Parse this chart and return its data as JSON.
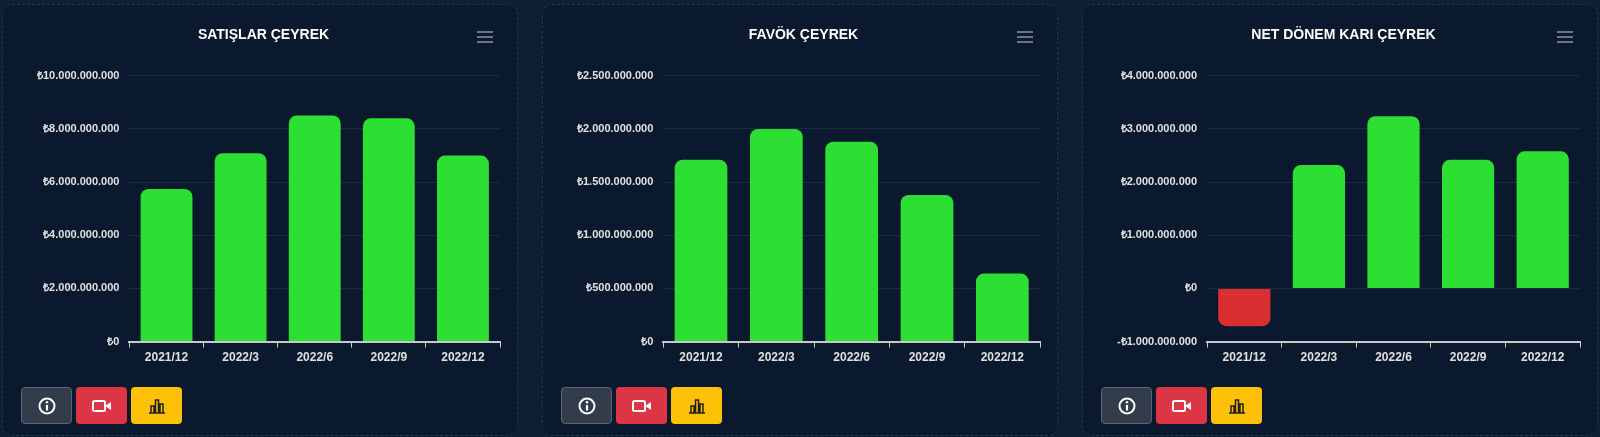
{
  "chart_data": [
    {
      "type": "bar",
      "title": "SATIŞLAR ÇEYREK",
      "categories": [
        "2021/12",
        "2022/3",
        "2022/6",
        "2022/9",
        "2022/12"
      ],
      "values": [
        5740000000,
        7090000000,
        8510000000,
        8400000000,
        7000000000
      ],
      "color": "#2ddf32",
      "ylim": [
        0,
        10000000000
      ],
      "yticks": [
        {
          "value": 0,
          "label": "₺0"
        },
        {
          "value": 2000000000,
          "label": "₺2.000.000.000"
        },
        {
          "value": 4000000000,
          "label": "₺4.000.000.000"
        },
        {
          "value": 6000000000,
          "label": "₺6.000.000.000"
        },
        {
          "value": 8000000000,
          "label": "₺8.000.000.000"
        },
        {
          "value": 10000000000,
          "label": "₺10.000.000.000"
        }
      ],
      "grid": "y"
    },
    {
      "type": "bar",
      "title": "FAVÖK ÇEYREK",
      "categories": [
        "2021/12",
        "2022/3",
        "2022/6",
        "2022/9",
        "2022/12"
      ],
      "values": [
        1710000000,
        2000000000,
        1880000000,
        1380000000,
        640000000
      ],
      "color": "#2ddf32",
      "ylim": [
        0,
        2500000000
      ],
      "yticks": [
        {
          "value": 0,
          "label": "₺0"
        },
        {
          "value": 500000000,
          "label": "₺500.000.000"
        },
        {
          "value": 1000000000,
          "label": "₺1.000.000.000"
        },
        {
          "value": 1500000000,
          "label": "₺1.500.000.000"
        },
        {
          "value": 2000000000,
          "label": "₺2.000.000.000"
        },
        {
          "value": 2500000000,
          "label": "₺2.500.000.000"
        }
      ],
      "grid": "y"
    },
    {
      "type": "bar",
      "title": "NET DÖNEM KARI ÇEYREK",
      "categories": [
        "2021/12",
        "2022/3",
        "2022/6",
        "2022/9",
        "2022/12"
      ],
      "values": [
        -710000000,
        2320000000,
        3240000000,
        2420000000,
        2580000000
      ],
      "colors": [
        "#d92f31",
        "#2ddf32",
        "#2ddf32",
        "#2ddf32",
        "#2ddf32"
      ],
      "ylim": [
        -1000000000,
        4000000000
      ],
      "yticks": [
        {
          "value": -1000000000,
          "label": "-₺1.000.000.000"
        },
        {
          "value": 0,
          "label": "₺0"
        },
        {
          "value": 1000000000,
          "label": "₺1.000.000.000"
        },
        {
          "value": 2000000000,
          "label": "₺2.000.000.000"
        },
        {
          "value": 3000000000,
          "label": "₺3.000.000.000"
        },
        {
          "value": 4000000000,
          "label": "₺4.000.000.000"
        }
      ],
      "grid": "y"
    }
  ]
}
